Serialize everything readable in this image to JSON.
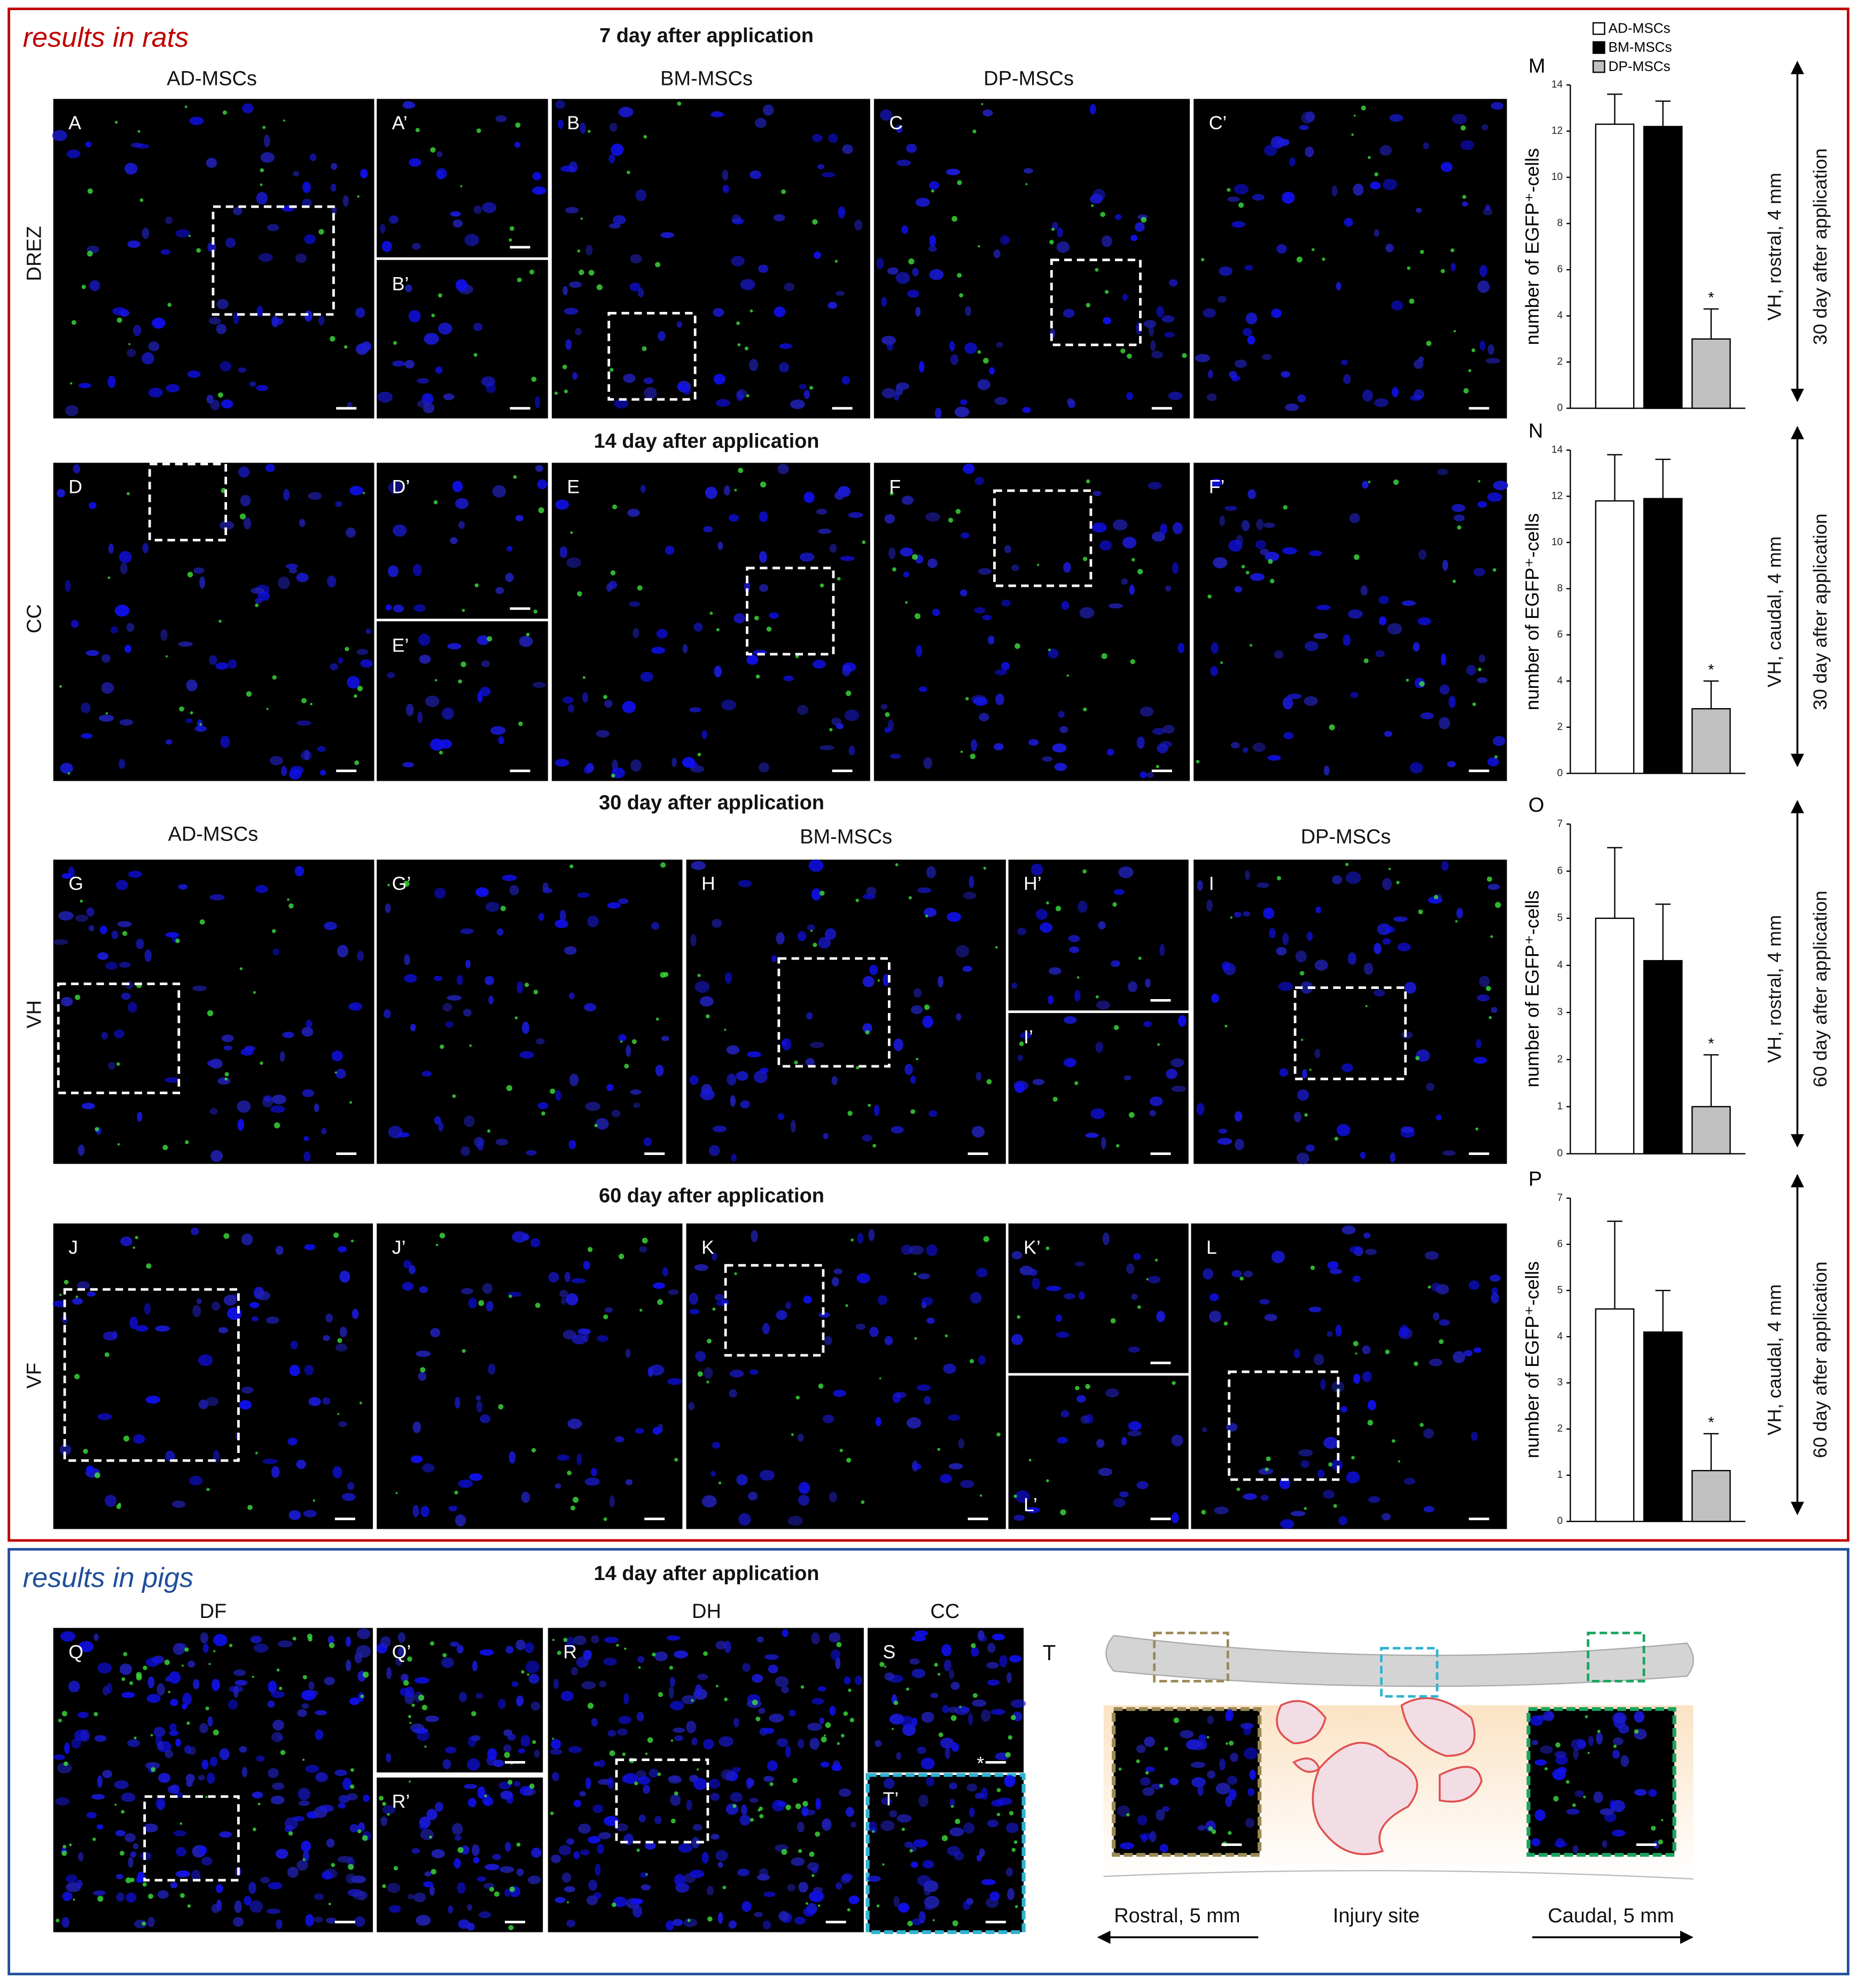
{
  "rats_section": {
    "title": "results in rats",
    "time_labels": [
      "7 day after application",
      "14 day after application",
      "30 day after application",
      "60 day after application"
    ],
    "region_labels": [
      "DREZ",
      "CC",
      "VH",
      "VF"
    ],
    "headers_row1": [
      "AD-MSCs",
      "BM-MSCs",
      "DP-MSCs"
    ],
    "headers_row3": [
      "AD-MSCs",
      "BM-MSCs",
      "DP-MSCs"
    ],
    "panels": [
      "A",
      "A’",
      "B’",
      "B",
      "C",
      "C’",
      "D",
      "D’",
      "E’",
      "E",
      "F",
      "F’",
      "G",
      "G’",
      "H",
      "H’",
      "I’",
      "I",
      "J",
      "J’",
      "K",
      "K’",
      "L’",
      "L"
    ]
  },
  "chart_data": [
    {
      "type": "bar",
      "label": "M",
      "ylabel": "number of EGFP⁺-cells",
      "ylim": [
        0,
        14
      ],
      "yticks": [
        0,
        2,
        4,
        6,
        8,
        10,
        12,
        14
      ],
      "annotation": "*",
      "side_labels": [
        "VH, rostral, 4 mm",
        "30 day after application"
      ],
      "series": [
        {
          "name": "AD-MSCs",
          "color": "#ffffff",
          "values": [
            12.3
          ],
          "errors": [
            1.3
          ]
        },
        {
          "name": "BM-MSCs",
          "color": "#000000",
          "values": [
            12.2
          ],
          "errors": [
            1.1
          ]
        },
        {
          "name": "DP-MSCs",
          "color": "#c0c0c0",
          "values": [
            3.0
          ],
          "errors": [
            1.3
          ]
        }
      ]
    },
    {
      "type": "bar",
      "label": "N",
      "ylabel": "number of EGFP⁺-cells",
      "ylim": [
        0,
        14
      ],
      "yticks": [
        0,
        2,
        4,
        6,
        8,
        10,
        12,
        14
      ],
      "annotation": "*",
      "side_labels": [
        "VH, caudal, 4 mm",
        "30 day after application"
      ],
      "series": [
        {
          "color": "#ffffff",
          "values": [
            11.8
          ],
          "errors": [
            2.0
          ]
        },
        {
          "color": "#000000",
          "values": [
            11.9
          ],
          "errors": [
            1.7
          ]
        },
        {
          "color": "#c0c0c0",
          "values": [
            2.8
          ],
          "errors": [
            1.2
          ]
        }
      ]
    },
    {
      "type": "bar",
      "label": "O",
      "ylabel": "number of EGFP⁺-cells",
      "ylim": [
        0,
        7
      ],
      "yticks": [
        0,
        1,
        2,
        3,
        4,
        5,
        6,
        7
      ],
      "annotation": "*",
      "side_labels": [
        "VH, rostral, 4 mm",
        "60 day after application"
      ],
      "series": [
        {
          "color": "#ffffff",
          "values": [
            5.0
          ],
          "errors": [
            1.5
          ]
        },
        {
          "color": "#000000",
          "values": [
            4.1
          ],
          "errors": [
            1.2
          ]
        },
        {
          "color": "#c0c0c0",
          "values": [
            1.0
          ],
          "errors": [
            1.1
          ]
        }
      ]
    },
    {
      "type": "bar",
      "label": "P",
      "ylabel": "number of EGFP⁺-cells",
      "ylim": [
        0,
        7
      ],
      "yticks": [
        0,
        1,
        2,
        3,
        4,
        5,
        6,
        7
      ],
      "annotation": "*",
      "side_labels": [
        "VH, caudal, 4 mm",
        "60 day after application"
      ],
      "series": [
        {
          "color": "#ffffff",
          "values": [
            4.6
          ],
          "errors": [
            1.9
          ]
        },
        {
          "color": "#000000",
          "values": [
            4.1
          ],
          "errors": [
            0.9
          ]
        },
        {
          "color": "#c0c0c0",
          "values": [
            1.1
          ],
          "errors": [
            0.8
          ]
        }
      ]
    }
  ],
  "pigs_section": {
    "title": "results in pigs",
    "time_label": "14 day after application",
    "headers": [
      "DF",
      "DH",
      "CC"
    ],
    "panels": [
      "Q",
      "Q’",
      "R’",
      "R",
      "S",
      "T’"
    ],
    "s_marker": "*",
    "schematic": {
      "label": "T",
      "rostral": "Rostral, 5 mm",
      "injury": "Injury site",
      "caudal": "Caudal, 5 mm"
    }
  }
}
